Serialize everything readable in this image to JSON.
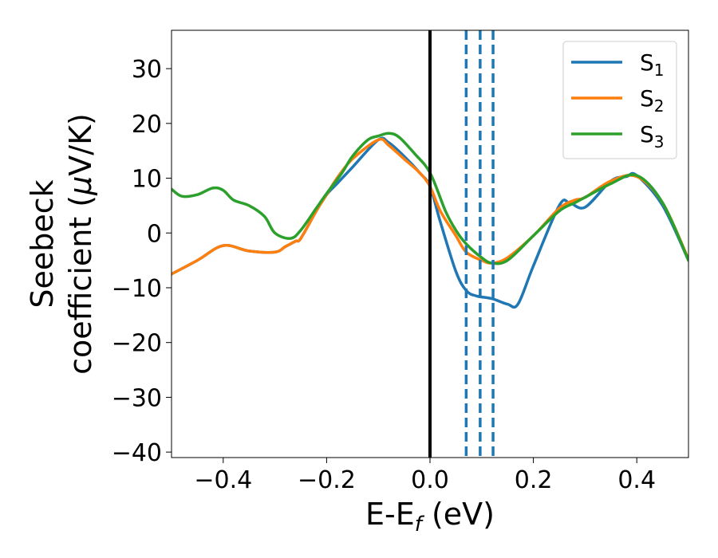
{
  "chart_data": {
    "type": "line",
    "xlabel": {
      "main": "E-E",
      "sub": "f",
      "tail": " (eV)"
    },
    "ylabel": {
      "line1": "Seebeck",
      "line2a": "coefficient  (",
      "mu": "μ",
      "line2b": "V/K)"
    },
    "xlim": [
      -0.5,
      0.5
    ],
    "ylim": [
      -41,
      37
    ],
    "xticks": [
      -0.4,
      -0.2,
      0.0,
      0.2,
      0.4
    ],
    "xtick_labels": [
      "−0.4",
      "−0.2",
      "0.0",
      "0.2",
      "0.4"
    ],
    "yticks": [
      -40,
      -30,
      -20,
      -10,
      0,
      10,
      20,
      30
    ],
    "ytick_labels": [
      "−40",
      "−30",
      "−20",
      "−10",
      "0",
      "10",
      "20",
      "30"
    ],
    "grid": false,
    "legend_position": "top-right",
    "vline_solid": {
      "x": 0.0,
      "color": "#000000"
    },
    "vlines_dashed": {
      "x": [
        0.07,
        0.097,
        0.122
      ],
      "color": "#1f77b4"
    },
    "series": [
      {
        "name_main": "S",
        "name_sub": "1",
        "color": "#1f77b4",
        "x": [
          -0.5,
          -0.45,
          -0.4,
          -0.35,
          -0.3,
          -0.28,
          -0.26,
          -0.25,
          -0.22,
          -0.2,
          -0.18,
          -0.15,
          -0.1,
          -0.08,
          -0.05,
          -0.02,
          0.0,
          0.02,
          0.05,
          0.07,
          0.09,
          0.12,
          0.15,
          0.17,
          0.2,
          0.25,
          0.27,
          0.3,
          0.35,
          0.38,
          0.4,
          0.45,
          0.5
        ],
        "y": [
          -7.5,
          -5,
          -2.3,
          -3.3,
          -3.5,
          -2.5,
          -1.5,
          -1,
          4,
          7,
          9,
          12,
          17,
          16.5,
          14,
          11,
          8.5,
          2,
          -7,
          -10.5,
          -11.5,
          -12,
          -13,
          -13,
          -6,
          5,
          5.5,
          4.7,
          9.5,
          10.3,
          10.5,
          5,
          -5
        ]
      },
      {
        "name_main": "S",
        "name_sub": "2",
        "color": "#ff7f0e",
        "x": [
          -0.5,
          -0.45,
          -0.4,
          -0.35,
          -0.3,
          -0.28,
          -0.26,
          -0.25,
          -0.22,
          -0.2,
          -0.18,
          -0.15,
          -0.1,
          -0.08,
          -0.05,
          -0.02,
          0.0,
          0.02,
          0.05,
          0.07,
          0.1,
          0.12,
          0.15,
          0.2,
          0.25,
          0.28,
          0.3,
          0.35,
          0.4,
          0.45,
          0.5
        ],
        "y": [
          -7.5,
          -5,
          -2.3,
          -3.3,
          -3.5,
          -2.5,
          -1.5,
          -1,
          4,
          7,
          10,
          13.5,
          17,
          16,
          13.5,
          11,
          8.5,
          4,
          -0.5,
          -3.5,
          -5,
          -5.5,
          -4.5,
          -0.5,
          4.5,
          6,
          6.5,
          9.5,
          10.3,
          5.5,
          -4.8
        ]
      },
      {
        "name_main": "S",
        "name_sub": "3",
        "color": "#2ca02c",
        "x": [
          -0.5,
          -0.48,
          -0.45,
          -0.42,
          -0.4,
          -0.38,
          -0.35,
          -0.32,
          -0.3,
          -0.27,
          -0.25,
          -0.22,
          -0.2,
          -0.17,
          -0.15,
          -0.12,
          -0.1,
          -0.08,
          -0.06,
          -0.03,
          0.0,
          0.03,
          0.05,
          0.07,
          0.1,
          0.12,
          0.15,
          0.2,
          0.25,
          0.28,
          0.3,
          0.35,
          0.4,
          0.45,
          0.5
        ],
        "y": [
          8,
          6.7,
          7,
          8.2,
          7.8,
          6,
          5,
          3,
          0,
          -1,
          0.5,
          4.5,
          7.2,
          11,
          14,
          17,
          17.7,
          18.2,
          17.5,
          14.5,
          11,
          4,
          0.5,
          -2,
          -4.5,
          -5.5,
          -5,
          -0.5,
          4,
          5.5,
          6.5,
          9,
          10.5,
          5.5,
          -5
        ]
      }
    ]
  }
}
